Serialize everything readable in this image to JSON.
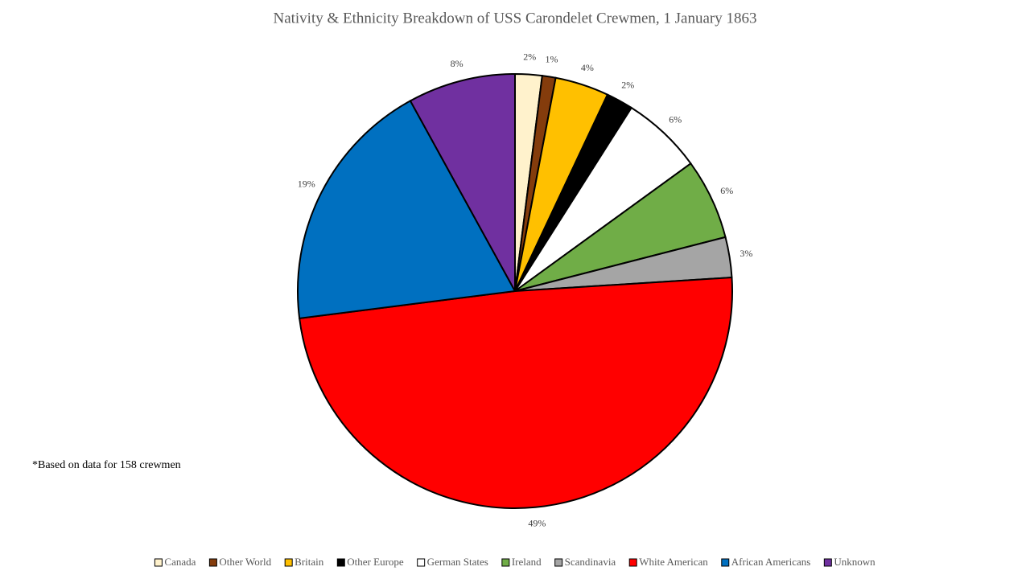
{
  "chart_data": {
    "type": "pie",
    "title": "Nativity & Ethnicity Breakdown of USS Carondelet  Crewmen, 1 January 1863",
    "note": "*Based on data for 158 crewmen",
    "categories": [
      "Canada",
      "Other World",
      "Britain",
      "Other Europe",
      "German States",
      "Ireland",
      "Scandinavia",
      "White American",
      "African Americans",
      "Unknown"
    ],
    "values": [
      2,
      1,
      4,
      2,
      6,
      6,
      3,
      49,
      19,
      8
    ],
    "value_labels": [
      "2%",
      "1%",
      "4%",
      "2%",
      "6%",
      "6%",
      "3%",
      "49%",
      "19%",
      "8%"
    ],
    "colors": [
      "#fff2cc",
      "#843c0c",
      "#ffc000",
      "#000000",
      "#ffffff",
      "#70ad47",
      "#a5a5a5",
      "#ff0000",
      "#0070c0",
      "#7030a0"
    ],
    "legend": "bottom"
  }
}
